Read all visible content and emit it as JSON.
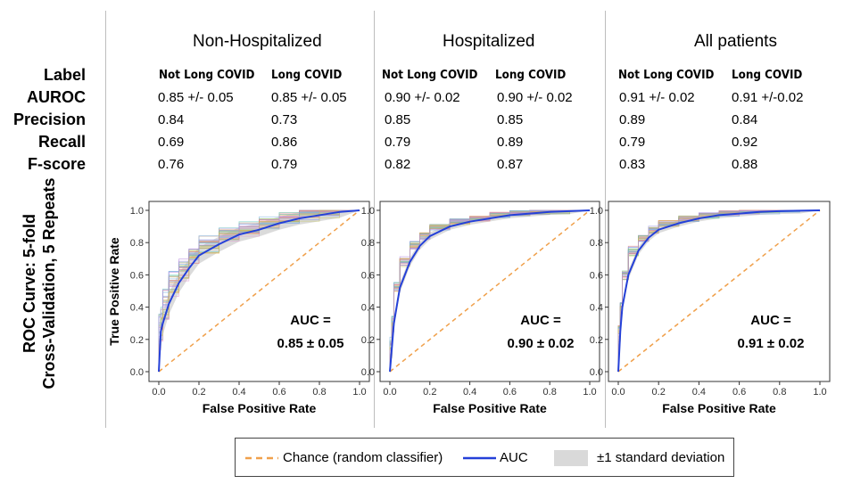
{
  "row_labels": [
    "Label",
    "AUROC",
    "Precision",
    "Recall",
    "F-score"
  ],
  "roc_row_label_line1": "ROC Curve: 5-fold",
  "roc_row_label_line2": "Cross-Validation, 5 Repeats",
  "groups": [
    {
      "title": "Non-Hospitalized",
      "classes": [
        "Not Long COVID",
        "Long COVID"
      ],
      "metrics": [
        [
          "0.85 +/- 0.05",
          "0.85 +/- 0.05"
        ],
        [
          "0.84",
          "0.73"
        ],
        [
          "0.69",
          "0.86"
        ],
        [
          "0.76",
          "0.79"
        ]
      ]
    },
    {
      "title": "Hospitalized",
      "classes": [
        "Not Long COVID",
        "Long COVID"
      ],
      "metrics": [
        [
          "0.90 +/- 0.02",
          "0.90 +/- 0.02"
        ],
        [
          "0.85",
          "0.85"
        ],
        [
          "0.79",
          "0.89"
        ],
        [
          "0.82",
          "0.87"
        ]
      ]
    },
    {
      "title": "All patients",
      "classes": [
        "Not Long COVID",
        "Long COVID"
      ],
      "metrics": [
        [
          "0.91 +/- 0.02",
          "0.91 +/-0.02"
        ],
        [
          "0.89",
          "0.84"
        ],
        [
          "0.79",
          "0.92"
        ],
        [
          "0.83",
          "0.88"
        ]
      ]
    }
  ],
  "legend": {
    "chance": "Chance (random classifier)",
    "auc": "AUC",
    "std": "±1 standard deviation"
  },
  "colors": {
    "auc": "#2440d8",
    "chance": "#f0a04b",
    "std_band": "#bdbdbd"
  },
  "chart_data": [
    {
      "type": "line",
      "title": "",
      "xlabel": "False Positive Rate",
      "ylabel": "True Positive Rate",
      "xlim": [
        0,
        1
      ],
      "ylim": [
        0,
        1
      ],
      "xticks": [
        "0.0",
        "0.2",
        "0.4",
        "0.6",
        "0.8",
        "1.0"
      ],
      "yticks": [
        "0.0",
        "0.2",
        "0.4",
        "0.6",
        "0.8",
        "1.0"
      ],
      "annotation_line1": "AUC =",
      "annotation_line2": "0.85 ± 0.05",
      "series": [
        {
          "name": "Chance (random classifier)",
          "x": [
            0,
            1
          ],
          "y": [
            0,
            1
          ]
        },
        {
          "name": "AUC",
          "x": [
            0,
            0.01,
            0.02,
            0.05,
            0.1,
            0.15,
            0.2,
            0.3,
            0.4,
            0.5,
            0.6,
            0.7,
            0.8,
            0.9,
            1.0
          ],
          "y": [
            0,
            0.25,
            0.3,
            0.42,
            0.55,
            0.64,
            0.72,
            0.79,
            0.85,
            0.88,
            0.92,
            0.95,
            0.97,
            0.99,
            1.0
          ]
        }
      ]
    },
    {
      "type": "line",
      "title": "",
      "xlabel": "False Positive Rate",
      "ylabel": "",
      "xlim": [
        0,
        1
      ],
      "ylim": [
        0,
        1
      ],
      "xticks": [
        "0.0",
        "0.2",
        "0.4",
        "0.6",
        "0.8",
        "1.0"
      ],
      "yticks": [
        "0.0",
        "0.2",
        "0.4",
        "0.6",
        "0.8",
        "1.0"
      ],
      "annotation_line1": "AUC =",
      "annotation_line2": "0.90 ± 0.02",
      "series": [
        {
          "name": "Chance (random classifier)",
          "x": [
            0,
            1
          ],
          "y": [
            0,
            1
          ]
        },
        {
          "name": "AUC",
          "x": [
            0,
            0.01,
            0.02,
            0.05,
            0.1,
            0.15,
            0.2,
            0.3,
            0.4,
            0.5,
            0.6,
            0.7,
            0.8,
            0.9,
            1.0
          ],
          "y": [
            0,
            0.15,
            0.3,
            0.52,
            0.68,
            0.78,
            0.84,
            0.9,
            0.93,
            0.95,
            0.97,
            0.98,
            0.99,
            0.995,
            1.0
          ]
        }
      ]
    },
    {
      "type": "line",
      "title": "",
      "xlabel": "False Positive Rate",
      "ylabel": "",
      "xlim": [
        0,
        1
      ],
      "ylim": [
        0,
        1
      ],
      "xticks": [
        "0.0",
        "0.2",
        "0.4",
        "0.6",
        "0.8",
        "1.0"
      ],
      "yticks": [
        "0.0",
        "0.2",
        "0.4",
        "0.6",
        "0.8",
        "1.0"
      ],
      "annotation_line1": "AUC =",
      "annotation_line2": "0.91 ± 0.02",
      "series": [
        {
          "name": "Chance (random classifier)",
          "x": [
            0,
            1
          ],
          "y": [
            0,
            1
          ]
        },
        {
          "name": "AUC",
          "x": [
            0,
            0.01,
            0.02,
            0.05,
            0.1,
            0.15,
            0.2,
            0.3,
            0.4,
            0.5,
            0.6,
            0.7,
            0.8,
            0.9,
            1.0
          ],
          "y": [
            0,
            0.25,
            0.4,
            0.6,
            0.75,
            0.83,
            0.88,
            0.92,
            0.95,
            0.97,
            0.98,
            0.99,
            0.995,
            0.998,
            1.0
          ]
        }
      ]
    }
  ]
}
